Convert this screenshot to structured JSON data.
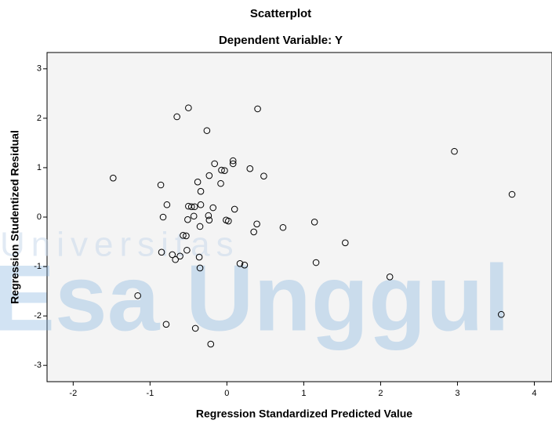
{
  "chart_data": {
    "type": "scatter",
    "title": "Scatterplot",
    "subtitle": "Dependent Variable: Y",
    "x_label": "Regression Standardized Predicted Value",
    "y_label": "Regression Studentized Residual",
    "watermark": [
      "Universitas",
      "Esa Unggul"
    ],
    "x": [
      -1.48,
      -0.86,
      -0.78,
      -0.83,
      -0.65,
      -0.5,
      0.4,
      -0.26,
      -0.16,
      -0.07,
      -0.03,
      0.08,
      0.08,
      0.3,
      0.48,
      -0.23,
      -0.38,
      -0.08,
      -0.34,
      -0.5,
      -0.46,
      -0.42,
      -0.34,
      -0.18,
      0.1,
      -0.24,
      -0.43,
      -0.51,
      -0.23,
      -0.01,
      0.02,
      -0.35,
      0.39,
      0.35,
      0.73,
      1.14,
      1.54,
      -0.57,
      -0.53,
      -0.85,
      -0.71,
      -0.67,
      -0.61,
      -0.52,
      -0.36,
      -0.35,
      0.17,
      0.23,
      1.16,
      2.12,
      -1.16,
      -0.79,
      -0.41,
      -0.21,
      2.96,
      3.71,
      3.57
    ],
    "series": [
      {
        "color": "#000000",
        "values": [
          0.79,
          0.65,
          0.25,
          0.0,
          2.03,
          2.21,
          2.19,
          1.75,
          1.08,
          0.95,
          0.94,
          1.14,
          1.08,
          0.98,
          0.83,
          0.84,
          0.71,
          0.68,
          0.52,
          0.22,
          0.21,
          0.21,
          0.25,
          0.19,
          0.16,
          0.03,
          0.02,
          -0.05,
          -0.06,
          -0.06,
          -0.08,
          -0.19,
          -0.14,
          -0.3,
          -0.21,
          -0.1,
          -0.52,
          -0.37,
          -0.38,
          -0.71,
          -0.76,
          -0.86,
          -0.79,
          -0.67,
          -0.81,
          -1.03,
          -0.94,
          -0.97,
          -0.92,
          -1.21,
          -1.59,
          -2.17,
          -2.25,
          -2.57,
          1.33,
          0.46,
          -1.97
        ]
      }
    ],
    "xlim": [
      -2.34,
      4.23
    ],
    "ylim": [
      -3.33,
      3.33
    ],
    "xticks": [
      -2,
      -1,
      0,
      1,
      2,
      3,
      4
    ],
    "yticks": [
      -3,
      -2,
      -1,
      0,
      1,
      2,
      3
    ],
    "background": "#f0f0f0"
  }
}
